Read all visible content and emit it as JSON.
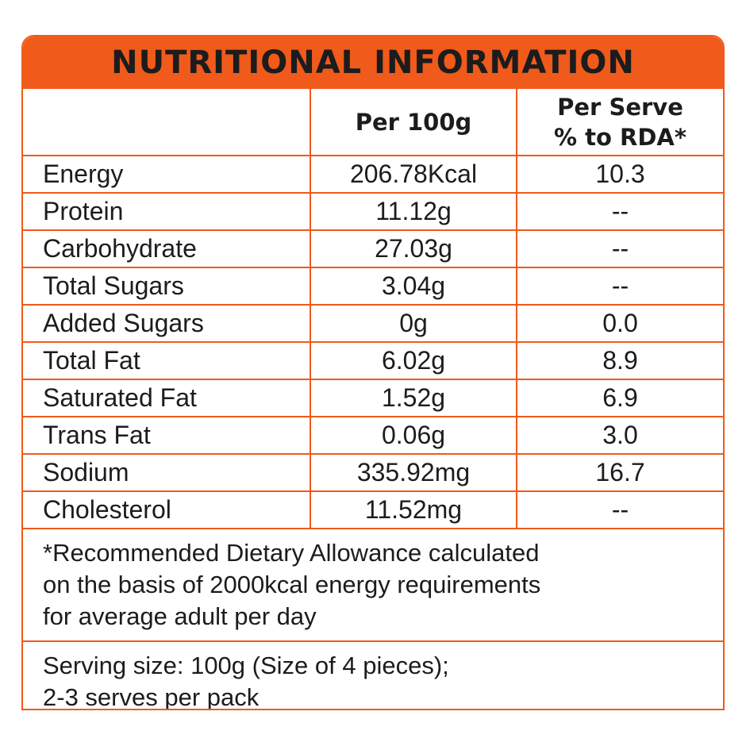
{
  "title": "NUTRITIONAL INFORMATION",
  "columns": {
    "per100": "Per 100g",
    "perServeLine1": "Per Serve",
    "perServeLine2": "% to RDA*"
  },
  "rows": [
    {
      "name": "Energy",
      "per100": "206.78Kcal",
      "rda": "10.3"
    },
    {
      "name": "Protein",
      "per100": "11.12g",
      "rda": "--"
    },
    {
      "name": "Carbohydrate",
      "per100": "27.03g",
      "rda": "--"
    },
    {
      "name": "Total Sugars",
      "per100": "3.04g",
      "rda": "--"
    },
    {
      "name": "Added Sugars",
      "per100": "0g",
      "rda": "0.0"
    },
    {
      "name": "Total Fat",
      "per100": "6.02g",
      "rda": "8.9"
    },
    {
      "name": "Saturated Fat",
      "per100": "1.52g",
      "rda": "6.9"
    },
    {
      "name": "Trans Fat",
      "per100": "0.06g",
      "rda": "3.0"
    },
    {
      "name": "Sodium",
      "per100": "335.92mg",
      "rda": "16.7"
    },
    {
      "name": "Cholesterol",
      "per100": "11.52mg",
      "rda": "--"
    }
  ],
  "footnote": [
    "*Recommended Dietary Allowance calculated",
    "on the basis of 2000kcal energy requirements",
    "for average adult per day"
  ],
  "serving": [
    "Serving size: 100g (Size of 4 pieces);",
    "2-3 serves per pack"
  ],
  "colors": {
    "accent": "#f05a1a",
    "text": "#1c1c1c"
  }
}
